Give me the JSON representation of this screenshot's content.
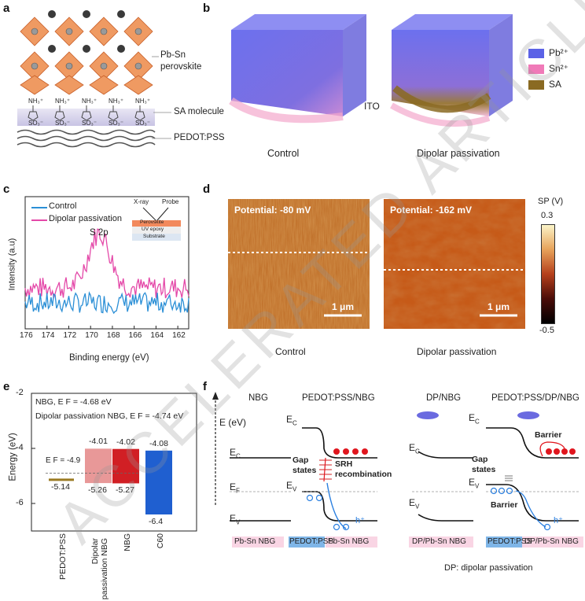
{
  "panel_labels": {
    "a": "a",
    "b": "b",
    "c": "c",
    "d": "d",
    "e": "e",
    "f": "f"
  },
  "panel_a": {
    "perovskite": "Pb-Sn perovskite",
    "sa": "SA molecule",
    "pedot": "PEDOT:PSS",
    "nh3": "NH₃⁺",
    "so3": "SO₃⁻"
  },
  "panel_b": {
    "legend": [
      "Pb²⁺",
      "Sn²⁺",
      "SA"
    ],
    "legend_colors": [
      "#5b62e6",
      "#f07ab8",
      "#8a6a22"
    ],
    "ito": "ITO",
    "caption_left": "Control",
    "caption_right": "Dipolar passivation"
  },
  "panel_c": {
    "legend_control": "Control",
    "legend_dp": "Dipolar passivation",
    "ylabel": "Intensity (a.u)",
    "xlabel": "Binding energy (eV)",
    "peak": "S 2p",
    "inset": {
      "xray": "X-ray",
      "probe": "Probe",
      "perovskite": "Perovskite",
      "uv": "UV epoxy",
      "substrate": "Substrate"
    },
    "xticks": [
      "176",
      "174",
      "172",
      "170",
      "168",
      "166",
      "164",
      "162"
    ]
  },
  "panel_d": {
    "left_potential": "Potential: -80 mV",
    "right_potential": "Potential: -162 mV",
    "scale": "1 μm",
    "scale2": "1 μm",
    "caption_left": "Control",
    "caption_right": "Dipolar passivation",
    "cb_title": "SP (V)",
    "cb_max": "0.3",
    "cb_min": "-0.5"
  },
  "chart_data": {
    "type": "bar",
    "ylabel": "Energy (eV)",
    "ylim": [
      -7,
      -2
    ],
    "yticks": [
      "-2",
      "-4",
      "-6"
    ],
    "categories": [
      "PEDOT:PSS",
      "Dipolar passivation NBG",
      "NBG",
      "C60"
    ],
    "bars": [
      {
        "top": null,
        "bottom": null
      },
      {
        "top": -4.01,
        "bottom": -5.26
      },
      {
        "top": -4.02,
        "bottom": -5.27
      },
      {
        "top": -4.08,
        "bottom": -6.4
      }
    ],
    "labels_top": [
      "",
      "-4.01",
      "-4.02",
      "-4.08"
    ],
    "labels_bottom": [
      "-5.14",
      "-5.26",
      "-5.27",
      "-6.4"
    ],
    "pedot_level": -5.14,
    "ef_label": "E F = -4.9",
    "ef_value": -4.9,
    "note1": "NBG, E F = -4.68 eV",
    "note2": "Dipolar passivation NBG, E F = -4.74 eV",
    "colors": [
      "#9a7a22",
      "#e89898",
      "#d11f24",
      "#1f5fd0"
    ]
  },
  "panel_f": {
    "col1": "NBG",
    "col2": "PEDOT:PSS/NBG",
    "col3": "DP/NBG",
    "col4": "PEDOT:PSS/DP/NBG",
    "e_ev": "E (eV)",
    "ec": "E",
    "ef": "E",
    "ev": "E",
    "gap_states": "Gap states",
    "srh": "SRH recombination",
    "gap2": "Gap states",
    "barrier1": "Barrier",
    "barrier2": "Barrier",
    "hplus": "h⁺",
    "tag1": "Pb-Sn NBG",
    "tag2a": "PEDOT:PSS",
    "tag2b": "Pb-Sn NBG",
    "tag3": "DP/Pb-Sn NBG",
    "tag4a": "PEDOT:PSS",
    "tag4b": "DP/Pb-Sn NBG",
    "footnote": "DP: dipolar passivation"
  },
  "watermark": "ACCELERATED ARTICLE PREVIEW"
}
